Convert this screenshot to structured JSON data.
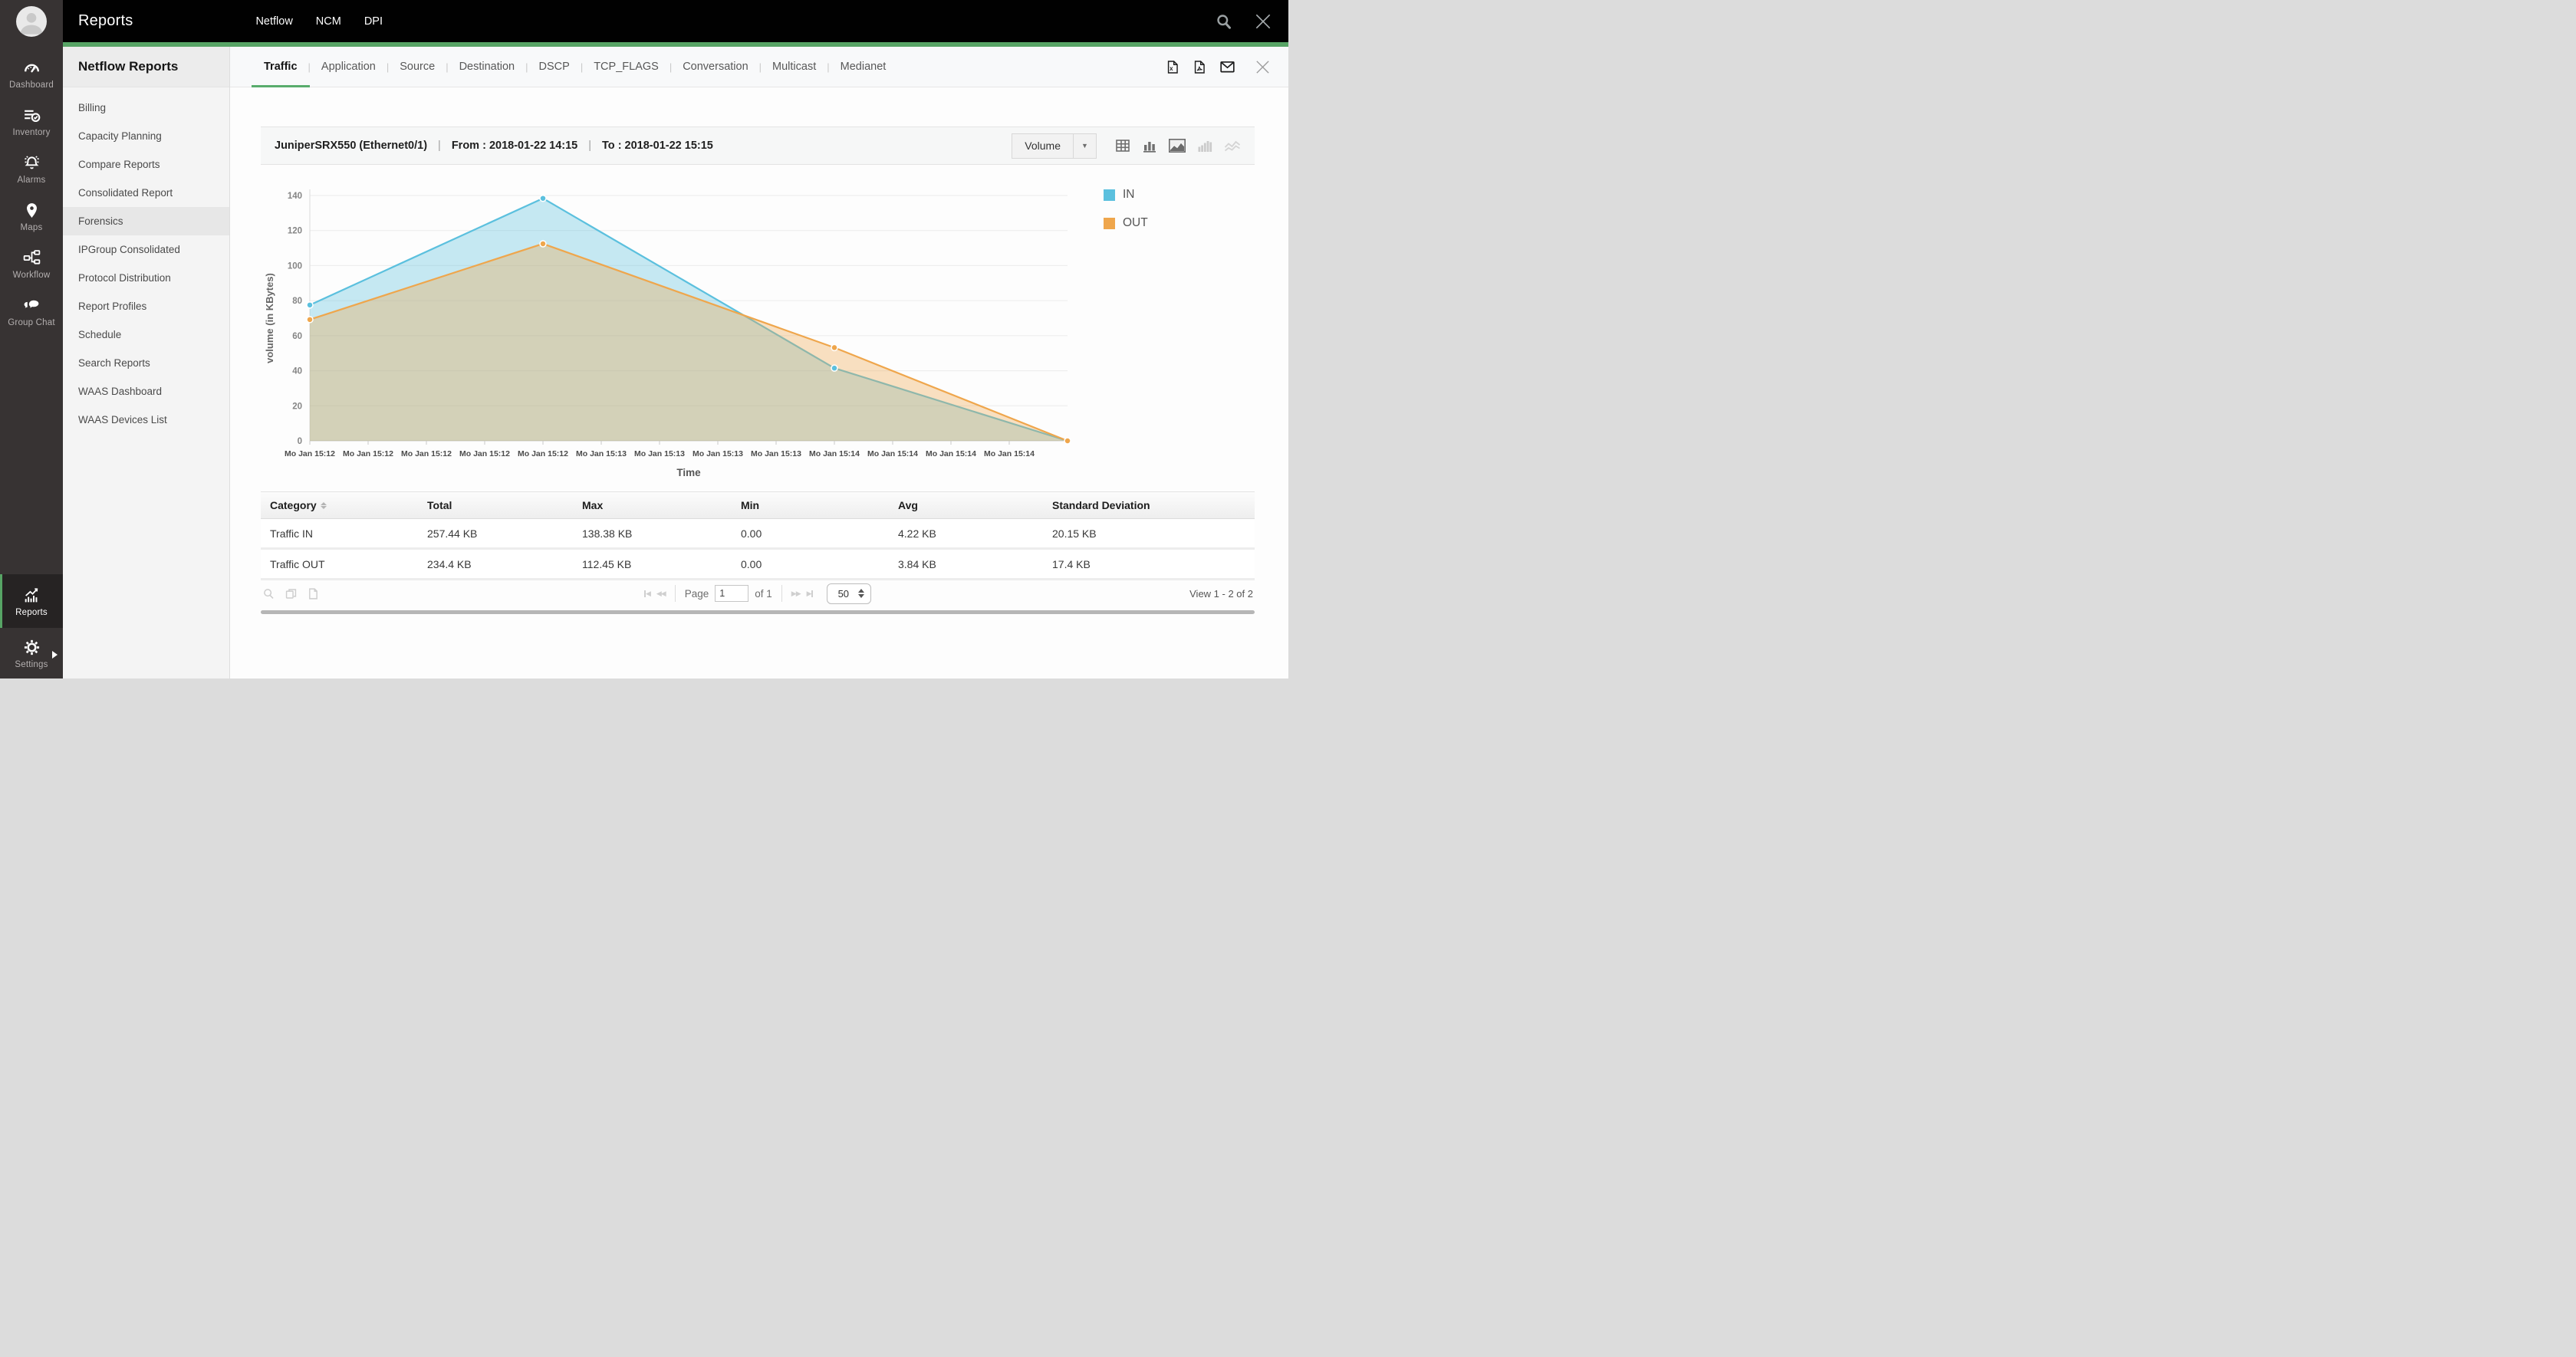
{
  "topbar": {
    "title": "Reports",
    "menu": [
      "Netflow",
      "NCM",
      "DPI"
    ]
  },
  "sidebar": {
    "items": [
      {
        "label": "Dashboard",
        "icon": "gauge-icon"
      },
      {
        "label": "Inventory",
        "icon": "inventory-list-icon"
      },
      {
        "label": "Alarms",
        "icon": "bell-icon"
      },
      {
        "label": "Maps",
        "icon": "map-pin-icon"
      },
      {
        "label": "Workflow",
        "icon": "workflow-icon"
      },
      {
        "label": "Group Chat",
        "icon": "chat-bubbles-icon"
      }
    ],
    "bottom": [
      {
        "label": "Reports",
        "icon": "report-chart-icon",
        "active": true
      },
      {
        "label": "Settings",
        "icon": "gear-icon"
      }
    ]
  },
  "panel": {
    "title": "Netflow Reports",
    "items": [
      {
        "label": "Billing"
      },
      {
        "label": "Capacity Planning"
      },
      {
        "label": "Compare Reports"
      },
      {
        "label": "Consolidated Report"
      },
      {
        "label": "Forensics",
        "selected": true
      },
      {
        "label": "IPGroup Consolidated"
      },
      {
        "label": "Protocol Distribution"
      },
      {
        "label": "Report Profiles"
      },
      {
        "label": "Schedule"
      },
      {
        "label": "Search Reports"
      },
      {
        "label": "WAAS Dashboard"
      },
      {
        "label": "WAAS Devices List"
      }
    ]
  },
  "tabs": {
    "items": [
      "Traffic",
      "Application",
      "Source",
      "Destination",
      "DSCP",
      "TCP_FLAGS",
      "Conversation",
      "Multicast",
      "Medianet"
    ],
    "active": "Traffic"
  },
  "report_header": {
    "device": "JuniperSRX550 (Ethernet0/1)",
    "from_label": "From : 2018-01-22 14:15",
    "to_label": "To : 2018-01-22 15:15",
    "metric_selector": {
      "value": "Volume"
    }
  },
  "chart_data": {
    "type": "area",
    "title": "",
    "xlabel": "Time",
    "ylabel": "volume (in KBytes)",
    "ylim": [
      0,
      140
    ],
    "y_ticks": [
      0,
      20,
      40,
      60,
      80,
      100,
      120,
      140
    ],
    "x_slots": 13,
    "x_tick_labels": [
      "Mo Jan 15:12",
      "Mo Jan 15:12",
      "Mo Jan 15:12",
      "Mo Jan 15:12",
      "Mo Jan 15:12",
      "Mo Jan 15:13",
      "Mo Jan 15:13",
      "Mo Jan 15:13",
      "Mo Jan 15:13",
      "Mo Jan 15:14",
      "Mo Jan 15:14",
      "Mo Jan 15:14",
      "Mo Jan 15:14"
    ],
    "grid": true,
    "legend_position": "right",
    "series": [
      {
        "name": "IN",
        "color": "#5bc0de",
        "points": [
          [
            0,
            77.5
          ],
          [
            4,
            138.38
          ],
          [
            9,
            41.5
          ],
          [
            13,
            0
          ]
        ]
      },
      {
        "name": "OUT",
        "color": "#efa64c",
        "points": [
          [
            0,
            69.2
          ],
          [
            4,
            112.45
          ],
          [
            9,
            53.2
          ],
          [
            13,
            0
          ]
        ]
      }
    ]
  },
  "table": {
    "columns": [
      "Category",
      "Total",
      "Max",
      "Min",
      "Avg",
      "Standard Deviation"
    ],
    "rows": [
      [
        "Traffic IN",
        "257.44 KB",
        "138.38 KB",
        "0.00",
        "4.22 KB",
        "20.15 KB"
      ],
      [
        "Traffic OUT",
        "234.4 KB",
        "112.45 KB",
        "0.00",
        "3.84 KB",
        "17.4 KB"
      ]
    ]
  },
  "pager": {
    "page_label": "Page",
    "page_value": "1",
    "of_label": "of 1",
    "page_size": "50",
    "view_label": "View 1 - 2 of 2"
  },
  "colors": {
    "accent_green": "#57a465",
    "series_in": "#5bc0de",
    "series_out": "#efa64c",
    "topbar_bg": "#010101",
    "sidebar_bg": "#373333"
  },
  "icons": {
    "search": "magnifier",
    "close": "x-cross",
    "export_excel": "xls-document",
    "export_pdf": "pdf-document",
    "email": "envelope",
    "dropdown_caret": "▼",
    "pager_first": "|◀",
    "pager_prev": "◀◀",
    "pager_next": "▶▶",
    "pager_last": "▶|"
  }
}
